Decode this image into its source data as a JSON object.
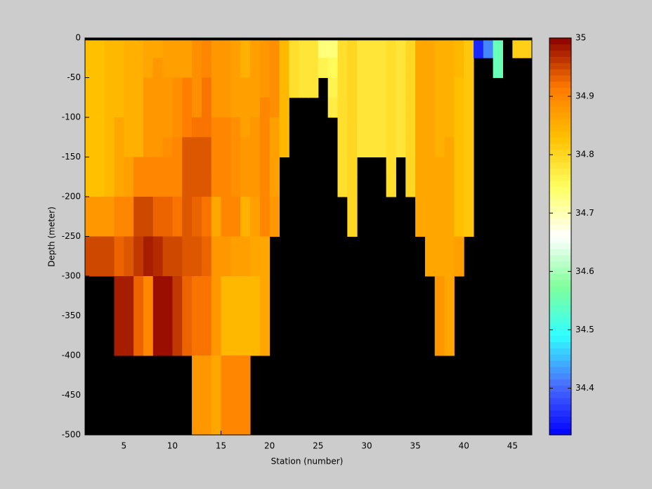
{
  "chart_data": {
    "type": "heatmap",
    "xlabel": "Station (number)",
    "ylabel": "Depth (meter)",
    "x": [
      1,
      2,
      3,
      4,
      5,
      6,
      7,
      8,
      9,
      10,
      11,
      12,
      13,
      14,
      15,
      16,
      17,
      18,
      19,
      20,
      21,
      22,
      23,
      24,
      25,
      26,
      27,
      28,
      29,
      30,
      31,
      32,
      33,
      34,
      35,
      36,
      37,
      38,
      39,
      40,
      41,
      42,
      43,
      44,
      45,
      46,
      47
    ],
    "y": [
      -3,
      -25,
      -50,
      -75,
      -100,
      -125,
      -150,
      -175,
      -200,
      -250,
      -300,
      -400,
      -500
    ],
    "z": [
      [
        34.83,
        34.83,
        34.83,
        34.83,
        34.83,
        34.83,
        34.83,
        34.83,
        34.88,
        34.95,
        null,
        null
      ],
      [
        34.83,
        34.83,
        34.83,
        34.83,
        34.83,
        34.83,
        34.83,
        34.83,
        34.88,
        34.95,
        null,
        null
      ],
      [
        34.84,
        34.84,
        34.84,
        34.84,
        34.84,
        34.84,
        34.84,
        34.84,
        34.88,
        34.95,
        null,
        null
      ],
      [
        34.84,
        34.84,
        34.84,
        34.84,
        34.86,
        34.86,
        34.86,
        34.86,
        34.9,
        34.93,
        34.98,
        null
      ],
      [
        34.85,
        34.85,
        34.85,
        34.85,
        34.85,
        34.85,
        34.87,
        34.87,
        34.9,
        34.94,
        34.98,
        null
      ],
      [
        34.85,
        34.85,
        34.85,
        34.85,
        34.85,
        34.85,
        34.9,
        34.9,
        34.95,
        34.96,
        34.93,
        null
      ],
      [
        34.86,
        34.86,
        34.88,
        34.88,
        34.88,
        34.88,
        34.9,
        34.9,
        34.95,
        34.98,
        34.9,
        null
      ],
      [
        34.86,
        34.88,
        34.88,
        34.88,
        34.88,
        34.88,
        34.9,
        34.9,
        34.93,
        34.97,
        34.99,
        null
      ],
      [
        34.87,
        34.87,
        34.88,
        34.88,
        34.88,
        34.89,
        34.9,
        34.9,
        34.93,
        34.95,
        34.99,
        null
      ],
      [
        34.87,
        34.87,
        34.89,
        34.89,
        34.89,
        34.9,
        34.9,
        34.9,
        34.92,
        34.95,
        34.96,
        null
      ],
      [
        34.87,
        34.87,
        34.91,
        34.91,
        34.91,
        34.94,
        34.94,
        34.94,
        34.94,
        34.94,
        34.93,
        null
      ],
      [
        34.89,
        34.89,
        34.89,
        34.89,
        34.92,
        34.94,
        34.94,
        34.94,
        34.93,
        34.94,
        34.92,
        34.88
      ],
      [
        34.9,
        34.9,
        34.92,
        34.92,
        34.92,
        34.94,
        34.94,
        34.94,
        34.92,
        34.93,
        34.92,
        34.88
      ],
      [
        34.88,
        34.88,
        34.88,
        34.88,
        34.9,
        34.9,
        34.9,
        34.9,
        34.86,
        34.88,
        34.88,
        34.86
      ],
      [
        34.88,
        34.88,
        34.88,
        34.88,
        34.9,
        34.9,
        34.9,
        34.9,
        34.9,
        34.88,
        34.84,
        34.9
      ],
      [
        34.87,
        34.87,
        34.87,
        34.87,
        34.89,
        34.89,
        34.89,
        34.89,
        34.9,
        34.87,
        34.84,
        34.9
      ],
      [
        34.85,
        34.85,
        34.87,
        34.87,
        34.87,
        34.88,
        34.88,
        34.88,
        34.85,
        34.87,
        34.84,
        34.9
      ],
      [
        34.87,
        34.87,
        34.87,
        34.87,
        34.88,
        34.88,
        34.88,
        34.88,
        34.87,
        34.86,
        34.84,
        null
      ],
      [
        34.88,
        34.88,
        34.88,
        34.9,
        34.9,
        34.9,
        34.9,
        34.9,
        34.9,
        34.86,
        34.86,
        null
      ],
      [
        34.89,
        34.89,
        34.89,
        34.89,
        34.87,
        34.87,
        34.87,
        34.87,
        34.88,
        null,
        null,
        null
      ],
      [
        34.84,
        34.84,
        34.84,
        34.84,
        34.84,
        34.84,
        null,
        null,
        null,
        null,
        null,
        null
      ],
      [
        34.79,
        34.79,
        34.79,
        null,
        null,
        null,
        null,
        null,
        null,
        null,
        null,
        null
      ],
      [
        34.78,
        34.78,
        34.78,
        null,
        null,
        null,
        null,
        null,
        null,
        null,
        null,
        null
      ],
      [
        34.78,
        34.78,
        34.78,
        null,
        null,
        null,
        null,
        null,
        null,
        null,
        null,
        null
      ],
      [
        34.73,
        34.76,
        null,
        null,
        null,
        null,
        null,
        null,
        null,
        null,
        null,
        null
      ],
      [
        34.73,
        34.75,
        34.76,
        34.77,
        null,
        null,
        null,
        null,
        null,
        null,
        null,
        null
      ],
      [
        34.79,
        34.79,
        34.79,
        34.79,
        34.79,
        34.79,
        34.79,
        34.79,
        null,
        null,
        null,
        null
      ],
      [
        34.8,
        34.8,
        34.8,
        34.8,
        34.8,
        34.8,
        34.8,
        34.8,
        34.8,
        null,
        null,
        null
      ],
      [
        34.78,
        34.78,
        34.78,
        34.78,
        34.78,
        34.78,
        null,
        null,
        null,
        null,
        null,
        null
      ],
      [
        34.78,
        34.78,
        34.78,
        34.78,
        34.78,
        34.78,
        null,
        null,
        null,
        null,
        null,
        null
      ],
      [
        34.78,
        34.78,
        34.78,
        34.78,
        34.78,
        34.78,
        null,
        null,
        null,
        null,
        null,
        null
      ],
      [
        34.79,
        34.79,
        34.79,
        34.79,
        34.79,
        34.79,
        34.79,
        34.79,
        null,
        null,
        null,
        null
      ],
      [
        34.78,
        34.78,
        34.78,
        34.78,
        34.78,
        34.78,
        null,
        null,
        null,
        null,
        null,
        null
      ],
      [
        34.8,
        34.8,
        34.8,
        34.8,
        34.8,
        34.8,
        34.8,
        34.8,
        null,
        null,
        null,
        null
      ],
      [
        34.86,
        34.86,
        34.86,
        34.86,
        34.86,
        34.86,
        34.86,
        34.86,
        34.86,
        null,
        null,
        null
      ],
      [
        34.86,
        34.86,
        34.86,
        34.86,
        34.86,
        34.86,
        34.86,
        34.86,
        34.86,
        34.86,
        null,
        null
      ],
      [
        34.85,
        34.85,
        34.85,
        34.85,
        34.85,
        34.85,
        34.86,
        34.86,
        34.86,
        34.86,
        34.88,
        null
      ],
      [
        34.85,
        34.85,
        34.85,
        34.85,
        34.85,
        34.86,
        34.86,
        34.86,
        34.86,
        34.86,
        34.86,
        null
      ],
      [
        34.84,
        34.84,
        34.83,
        34.83,
        34.83,
        34.83,
        34.83,
        34.83,
        34.83,
        34.87,
        null,
        null
      ],
      [
        34.82,
        34.82,
        34.82,
        34.82,
        34.82,
        34.82,
        34.82,
        34.82,
        34.82,
        null,
        null,
        null
      ],
      [
        34.35,
        null,
        null,
        null,
        null,
        null,
        null,
        null,
        null,
        null,
        null,
        null
      ],
      [
        34.42,
        null,
        null,
        null,
        null,
        null,
        null,
        null,
        null,
        null,
        null,
        null
      ],
      [
        34.55,
        34.55,
        null,
        null,
        null,
        null,
        null,
        null,
        null,
        null,
        null,
        null
      ],
      [
        null,
        null,
        null,
        null,
        null,
        null,
        null,
        null,
        null,
        null,
        null,
        null
      ],
      [
        34.81,
        null,
        null,
        null,
        null,
        null,
        null,
        null,
        null,
        null,
        null,
        null
      ],
      [
        34.81,
        null,
        null,
        null,
        null,
        null,
        null,
        null,
        null,
        null,
        null,
        null
      ]
    ],
    "xlim": [
      1,
      47
    ],
    "xticks": [
      5,
      10,
      15,
      20,
      25,
      30,
      35,
      40,
      45
    ],
    "ylim": [
      -500,
      0
    ],
    "yticks": [
      0,
      -50,
      -100,
      -150,
      -200,
      -250,
      -300,
      -350,
      -400,
      -450,
      -500
    ],
    "clim": [
      34.32,
      35.0
    ],
    "cticks": [
      34.4,
      34.5,
      34.6,
      34.7,
      34.8,
      34.9,
      35
    ],
    "colormap": [
      "#0000ff",
      "#4a6cff",
      "#30ffff",
      "#80ff9a",
      "#ffffff",
      "#ffff60",
      "#ffc000",
      "#ff7a00",
      "#8b0000"
    ],
    "background": "#000000"
  }
}
